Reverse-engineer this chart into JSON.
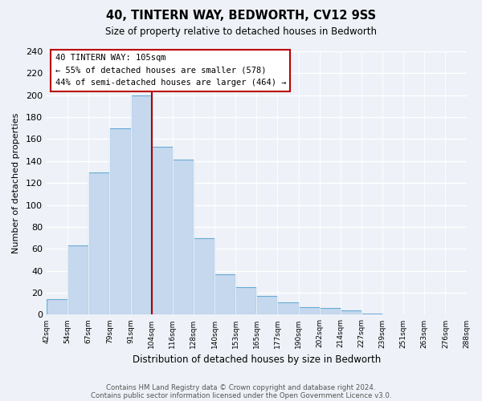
{
  "title": "40, TINTERN WAY, BEDWORTH, CV12 9SS",
  "subtitle": "Size of property relative to detached houses in Bedworth",
  "xlabel": "Distribution of detached houses by size in Bedworth",
  "ylabel": "Number of detached properties",
  "bin_edges": [
    "42sqm",
    "54sqm",
    "67sqm",
    "79sqm",
    "91sqm",
    "104sqm",
    "116sqm",
    "128sqm",
    "140sqm",
    "153sqm",
    "165sqm",
    "177sqm",
    "190sqm",
    "202sqm",
    "214sqm",
    "227sqm",
    "239sqm",
    "251sqm",
    "263sqm",
    "276sqm",
    "288sqm"
  ],
  "bar_values": [
    14,
    63,
    130,
    170,
    200,
    153,
    141,
    70,
    37,
    25,
    17,
    11,
    7,
    6,
    4,
    1,
    0,
    0,
    0,
    0
  ],
  "bar_color": "#c5d8ee",
  "bar_edge_color": "#6aaad4",
  "vline_x": 5,
  "vline_color": "#aa0000",
  "ylim": [
    0,
    240
  ],
  "yticks": [
    0,
    20,
    40,
    60,
    80,
    100,
    120,
    140,
    160,
    180,
    200,
    220,
    240
  ],
  "annotation_title": "40 TINTERN WAY: 105sqm",
  "annotation_line1": "← 55% of detached houses are smaller (578)",
  "annotation_line2": "44% of semi-detached houses are larger (464) →",
  "footnote1": "Contains HM Land Registry data © Crown copyright and database right 2024.",
  "footnote2": "Contains public sector information licensed under the Open Government Licence v3.0.",
  "bg_color": "#eef2f8"
}
